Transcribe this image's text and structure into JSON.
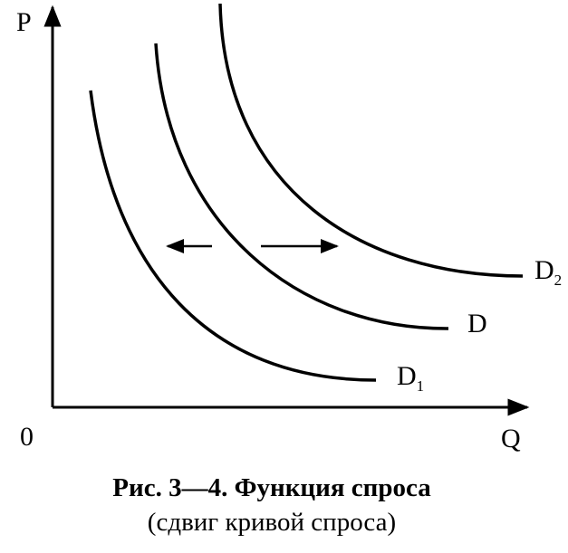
{
  "axes": {
    "y_label": "P",
    "x_label": "Q",
    "origin": "0"
  },
  "curves": [
    {
      "label": "D",
      "subscript": "1"
    },
    {
      "label": "D"
    },
    {
      "label": "D",
      "subscript": "2"
    }
  ],
  "caption": {
    "lines": [
      "Рис. 3—4. Функция спроса",
      "(сдвиг кривой спроса)"
    ]
  }
}
